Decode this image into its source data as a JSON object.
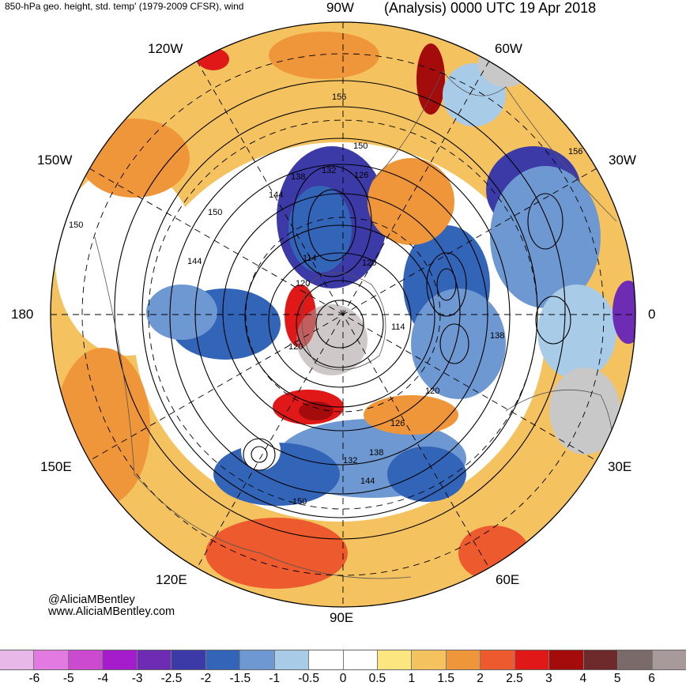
{
  "header": {
    "title_left": "850-hPa geo. height, std. temp' (1979-2009 CFSR), wind",
    "title_right": "(Analysis) 0000 UTC 19 Apr 2018"
  },
  "longitude_labels": {
    "deg_90w": "90W",
    "deg_120w": "120W",
    "deg_60w": "60W",
    "deg_150w": "150W",
    "deg_30w": "30W",
    "deg_180": "180",
    "deg_0": "0",
    "deg_150e": "150E",
    "deg_30e": "30E",
    "deg_120e": "120E",
    "deg_60e": "60E",
    "deg_90e": "90E"
  },
  "contour_labels": [
    "156",
    "150",
    "126",
    "132",
    "138",
    "144",
    "150",
    "144",
    "120",
    "114",
    "120",
    "138",
    "156",
    "120",
    "126",
    "132",
    "138",
    "144",
    "150",
    "120",
    "114",
    "150"
  ],
  "credits": {
    "handle": "@AliciaMBentley",
    "website": "www.AliciaMBentley.com"
  },
  "colorbar": {
    "colors": [
      "#e8b8e8",
      "#e27ae2",
      "#cc4ad0",
      "#a41ccc",
      "#6e2cb4",
      "#3c3aa6",
      "#3264b8",
      "#6e98d2",
      "#a8cbe8",
      "#ffffff",
      "#ffffff",
      "#fbe680",
      "#f5c260",
      "#f0963a",
      "#ec5a2e",
      "#e01818",
      "#a40c0c",
      "#6e2a2a",
      "#7a6a6a",
      "#a89a9a"
    ],
    "tick_labels": [
      "-6",
      "-5",
      "-4",
      "-3",
      "-2.5",
      "-2",
      "-1.5",
      "-1",
      "-0.5",
      "0",
      "0.5",
      "1",
      "1.5",
      "2",
      "2.5",
      "3",
      "4",
      "5",
      "6"
    ]
  }
}
